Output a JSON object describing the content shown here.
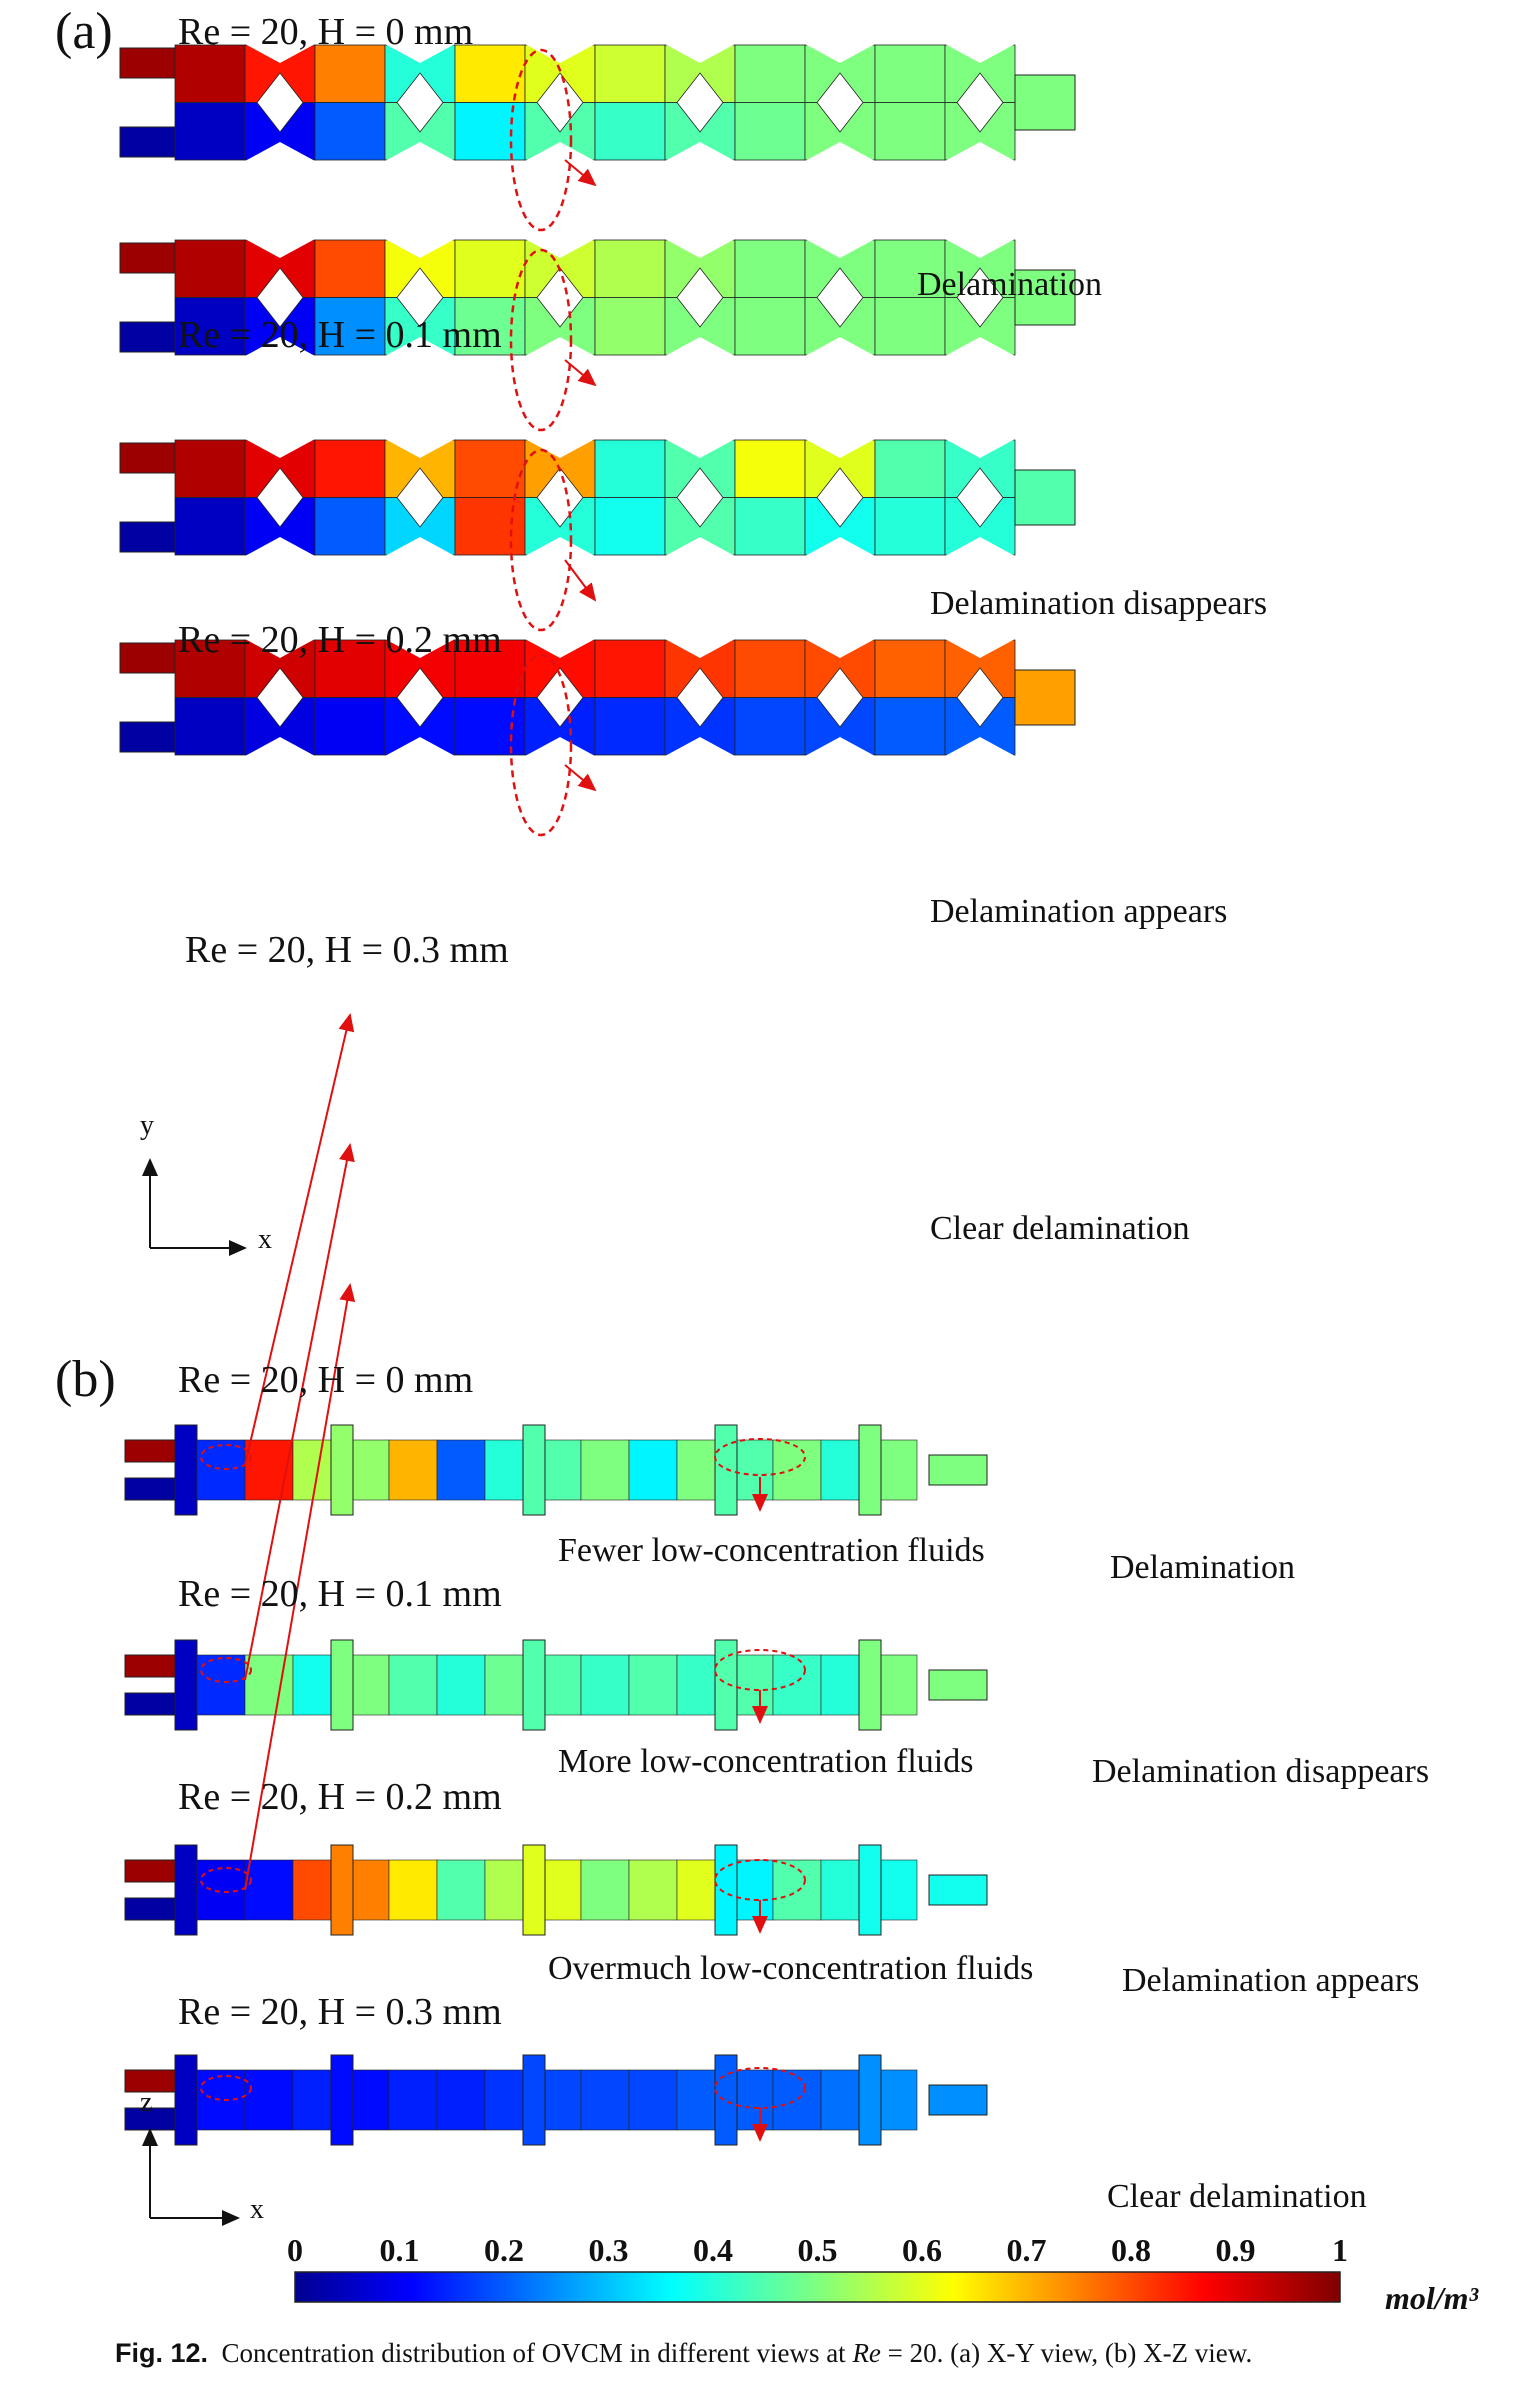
{
  "panel_a": {
    "label": "(a)",
    "cases": [
      {
        "label": "Re = 20, H = 0 mm",
        "annotation": "Delamination"
      },
      {
        "label": "Re = 20, H = 0.1 mm",
        "annotation": "Delamination disappears"
      },
      {
        "label": "Re = 20, H = 0.2 mm",
        "annotation": "Delamination appears"
      },
      {
        "label": "Re = 20, H = 0.3 mm",
        "annotation": "Clear delamination"
      }
    ],
    "axis_vertical": "y",
    "axis_horizontal": "x"
  },
  "panel_b": {
    "label": "(b)",
    "cases": [
      {
        "label": "Re = 20, H = 0 mm",
        "annotation_left": "Fewer low-concentration fluids",
        "annotation_right": "Delamination"
      },
      {
        "label": "Re = 20, H = 0.1 mm",
        "annotation_left": "More low-concentration fluids",
        "annotation_right": "Delamination disappears"
      },
      {
        "label": "Re = 20, H = 0.2 mm",
        "annotation_left": "Overmuch low-concentration fluids",
        "annotation_right": "Delamination appears"
      },
      {
        "label": "Re = 20, H = 0.3 mm",
        "annotation_left": "",
        "annotation_right": "Clear delamination"
      }
    ],
    "axis_vertical": "z",
    "axis_horizontal": "x"
  },
  "colorbar": {
    "ticks": [
      "0",
      "0.1",
      "0.2",
      "0.3",
      "0.4",
      "0.5",
      "0.6",
      "0.7",
      "0.8",
      "0.9",
      "1"
    ],
    "unit": "mol/m³",
    "colormap": "jet",
    "range": [
      0,
      1
    ]
  },
  "caption": {
    "fig": "Fig. 12.",
    "text_before": "Concentration distribution of OVCM in different views at ",
    "re": "Re",
    "text_after": " = 20. (a) X-Y view, (b) X-Z view."
  },
  "colors": {
    "red_dashed": "#e01010",
    "jet_low": "#00008f",
    "jet_high": "#800000"
  }
}
